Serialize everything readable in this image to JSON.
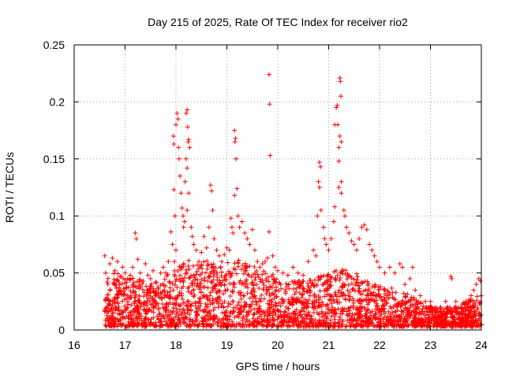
{
  "chart_data": {
    "type": "scatter",
    "title": "Day 215 of 2025, Rate Of TEC Index for receiver rio2",
    "xlabel": "GPS time / hours",
    "ylabel": "ROTI / TECUs",
    "xlim": [
      16,
      24
    ],
    "ylim": [
      0,
      0.25
    ],
    "x_ticks": [
      16,
      17,
      18,
      19,
      20,
      21,
      22,
      23,
      24
    ],
    "x_tick_labels": [
      "16",
      "17",
      "18",
      "19",
      "20",
      "21",
      "22",
      "23",
      "24"
    ],
    "y_ticks": [
      0,
      0.05,
      0.1,
      0.15,
      0.2,
      0.25
    ],
    "y_tick_labels": [
      "0",
      "0.05",
      "0.1",
      "0.15",
      "0.2",
      "0.25"
    ],
    "grid": true,
    "marker": "plus",
    "color": "#ff0000",
    "series": [
      {
        "name": "ROTI",
        "points": [
          [
            16.6,
            0.065
          ],
          [
            16.62,
            0.05
          ],
          [
            16.65,
            0.042
          ],
          [
            16.7,
            0.058
          ],
          [
            16.75,
            0.063
          ],
          [
            16.8,
            0.052
          ],
          [
            16.85,
            0.06
          ],
          [
            16.9,
            0.047
          ],
          [
            16.95,
            0.055
          ],
          [
            17.0,
            0.05
          ],
          [
            17.05,
            0.045
          ],
          [
            17.1,
            0.048
          ],
          [
            17.15,
            0.055
          ],
          [
            17.2,
            0.085
          ],
          [
            17.22,
            0.08
          ],
          [
            17.25,
            0.062
          ],
          [
            17.3,
            0.05
          ],
          [
            17.4,
            0.058
          ],
          [
            17.45,
            0.048
          ],
          [
            17.5,
            0.045
          ],
          [
            17.55,
            0.052
          ],
          [
            17.6,
            0.042
          ],
          [
            17.7,
            0.05
          ],
          [
            17.75,
            0.055
          ],
          [
            17.8,
            0.05
          ],
          [
            17.85,
            0.06
          ],
          [
            17.9,
            0.086
          ],
          [
            17.93,
            0.075
          ],
          [
            17.97,
            0.06
          ],
          [
            18.0,
            0.07
          ],
          [
            17.98,
            0.1
          ],
          [
            17.96,
            0.123
          ],
          [
            17.95,
            0.17
          ],
          [
            17.96,
            0.163
          ],
          [
            18.0,
            0.18
          ],
          [
            18.02,
            0.19
          ],
          [
            18.04,
            0.185
          ],
          [
            18.05,
            0.16
          ],
          [
            18.06,
            0.15
          ],
          [
            18.08,
            0.135
          ],
          [
            18.1,
            0.12
          ],
          [
            18.12,
            0.107
          ],
          [
            18.14,
            0.1
          ],
          [
            18.15,
            0.09
          ],
          [
            18.17,
            0.095
          ],
          [
            18.2,
            0.19
          ],
          [
            18.22,
            0.193
          ],
          [
            18.23,
            0.178
          ],
          [
            18.24,
            0.165
          ],
          [
            18.25,
            0.167
          ],
          [
            18.27,
            0.16
          ],
          [
            18.2,
            0.15
          ],
          [
            18.22,
            0.142
          ],
          [
            18.18,
            0.13
          ],
          [
            18.25,
            0.12
          ],
          [
            18.22,
            0.105
          ],
          [
            18.3,
            0.09
          ],
          [
            18.32,
            0.082
          ],
          [
            18.35,
            0.075
          ],
          [
            18.4,
            0.07
          ],
          [
            18.45,
            0.06
          ],
          [
            18.5,
            0.068
          ],
          [
            18.55,
            0.082
          ],
          [
            18.6,
            0.072
          ],
          [
            18.65,
            0.09
          ],
          [
            18.68,
            0.127
          ],
          [
            18.7,
            0.122
          ],
          [
            18.72,
            0.105
          ],
          [
            18.75,
            0.08
          ],
          [
            18.8,
            0.07
          ],
          [
            18.85,
            0.065
          ],
          [
            18.9,
            0.06
          ],
          [
            18.95,
            0.066
          ],
          [
            19.0,
            0.072
          ],
          [
            19.05,
            0.07
          ],
          [
            19.08,
            0.098
          ],
          [
            19.1,
            0.09
          ],
          [
            19.12,
            0.085
          ],
          [
            19.15,
            0.175
          ],
          [
            19.17,
            0.168
          ],
          [
            19.16,
            0.165
          ],
          [
            19.18,
            0.15
          ],
          [
            19.2,
            0.124
          ],
          [
            19.15,
            0.118
          ],
          [
            19.22,
            0.1
          ],
          [
            19.25,
            0.09
          ],
          [
            19.3,
            0.095
          ],
          [
            19.35,
            0.085
          ],
          [
            19.4,
            0.08
          ],
          [
            19.45,
            0.075
          ],
          [
            19.5,
            0.088
          ],
          [
            19.55,
            0.07
          ],
          [
            19.6,
            0.06
          ],
          [
            19.65,
            0.055
          ],
          [
            19.7,
            0.058
          ],
          [
            19.75,
            0.06
          ],
          [
            19.8,
            0.063
          ],
          [
            19.83,
            0.224
          ],
          [
            19.84,
            0.198
          ],
          [
            19.85,
            0.153
          ],
          [
            19.83,
            0.086
          ],
          [
            19.9,
            0.065
          ],
          [
            19.95,
            0.055
          ],
          [
            20.0,
            0.052
          ],
          [
            20.1,
            0.05
          ],
          [
            20.2,
            0.048
          ],
          [
            20.3,
            0.055
          ],
          [
            20.4,
            0.05
          ],
          [
            20.5,
            0.048
          ],
          [
            20.6,
            0.06
          ],
          [
            20.7,
            0.07
          ],
          [
            20.75,
            0.065
          ],
          [
            20.78,
            0.1
          ],
          [
            20.8,
            0.13
          ],
          [
            20.82,
            0.147
          ],
          [
            20.84,
            0.143
          ],
          [
            20.82,
            0.125
          ],
          [
            20.85,
            0.105
          ],
          [
            20.9,
            0.09
          ],
          [
            20.92,
            0.08
          ],
          [
            20.95,
            0.075
          ],
          [
            21.0,
            0.07
          ],
          [
            21.05,
            0.08
          ],
          [
            21.1,
            0.095
          ],
          [
            21.12,
            0.108
          ],
          [
            21.12,
            0.18
          ],
          [
            21.15,
            0.195
          ],
          [
            21.17,
            0.197
          ],
          [
            21.18,
            0.18
          ],
          [
            21.2,
            0.16
          ],
          [
            21.22,
            0.221
          ],
          [
            21.23,
            0.218
          ],
          [
            21.24,
            0.205
          ],
          [
            21.22,
            0.17
          ],
          [
            21.25,
            0.165
          ],
          [
            21.2,
            0.148
          ],
          [
            21.25,
            0.13
          ],
          [
            21.2,
            0.125
          ],
          [
            21.25,
            0.12
          ],
          [
            21.3,
            0.105
          ],
          [
            21.32,
            0.1
          ],
          [
            21.35,
            0.09
          ],
          [
            21.4,
            0.085
          ],
          [
            21.45,
            0.078
          ],
          [
            21.5,
            0.075
          ],
          [
            21.55,
            0.07
          ],
          [
            21.6,
            0.08
          ],
          [
            21.65,
            0.09
          ],
          [
            21.7,
            0.092
          ],
          [
            21.75,
            0.088
          ],
          [
            21.8,
            0.075
          ],
          [
            21.85,
            0.07
          ],
          [
            21.9,
            0.065
          ],
          [
            21.95,
            0.06
          ],
          [
            22.0,
            0.055
          ],
          [
            22.1,
            0.05
          ],
          [
            22.2,
            0.055
          ],
          [
            22.3,
            0.05
          ],
          [
            22.4,
            0.058
          ],
          [
            22.45,
            0.055
          ],
          [
            22.5,
            0.04
          ],
          [
            22.6,
            0.045
          ],
          [
            22.65,
            0.055
          ],
          [
            22.7,
            0.035
          ],
          [
            22.8,
            0.03
          ],
          [
            22.9,
            0.025
          ],
          [
            23.0,
            0.025
          ],
          [
            23.1,
            0.02
          ],
          [
            23.2,
            0.02
          ],
          [
            23.3,
            0.025
          ],
          [
            23.4,
            0.047
          ],
          [
            23.42,
            0.045
          ],
          [
            23.5,
            0.025
          ],
          [
            23.6,
            0.02
          ],
          [
            23.7,
            0.025
          ],
          [
            23.8,
            0.03
          ],
          [
            23.85,
            0.035
          ],
          [
            23.9,
            0.04
          ],
          [
            23.95,
            0.045
          ],
          [
            23.98,
            0.043
          ]
        ]
      }
    ],
    "dense_band": [
      {
        "x": 16.6,
        "ymax": 0.045
      },
      {
        "x": 16.8,
        "ymax": 0.048
      },
      {
        "x": 17.0,
        "ymax": 0.042
      },
      {
        "x": 17.2,
        "ymax": 0.045
      },
      {
        "x": 17.4,
        "ymax": 0.04
      },
      {
        "x": 17.6,
        "ymax": 0.038
      },
      {
        "x": 17.8,
        "ymax": 0.045
      },
      {
        "x": 18.0,
        "ymax": 0.05
      },
      {
        "x": 18.2,
        "ymax": 0.06
      },
      {
        "x": 18.4,
        "ymax": 0.055
      },
      {
        "x": 18.6,
        "ymax": 0.058
      },
      {
        "x": 18.8,
        "ymax": 0.055
      },
      {
        "x": 19.0,
        "ymax": 0.058
      },
      {
        "x": 19.2,
        "ymax": 0.06
      },
      {
        "x": 19.4,
        "ymax": 0.058
      },
      {
        "x": 19.6,
        "ymax": 0.05
      },
      {
        "x": 19.8,
        "ymax": 0.05
      },
      {
        "x": 20.0,
        "ymax": 0.042
      },
      {
        "x": 20.2,
        "ymax": 0.04
      },
      {
        "x": 20.4,
        "ymax": 0.04
      },
      {
        "x": 20.6,
        "ymax": 0.04
      },
      {
        "x": 20.8,
        "ymax": 0.045
      },
      {
        "x": 21.0,
        "ymax": 0.048
      },
      {
        "x": 21.2,
        "ymax": 0.05
      },
      {
        "x": 21.4,
        "ymax": 0.05
      },
      {
        "x": 21.6,
        "ymax": 0.045
      },
      {
        "x": 21.8,
        "ymax": 0.04
      },
      {
        "x": 22.0,
        "ymax": 0.035
      },
      {
        "x": 22.2,
        "ymax": 0.035
      },
      {
        "x": 22.4,
        "ymax": 0.03
      },
      {
        "x": 22.6,
        "ymax": 0.028
      },
      {
        "x": 22.8,
        "ymax": 0.022
      },
      {
        "x": 23.0,
        "ymax": 0.018
      },
      {
        "x": 23.2,
        "ymax": 0.016
      },
      {
        "x": 23.4,
        "ymax": 0.018
      },
      {
        "x": 23.6,
        "ymax": 0.02
      },
      {
        "x": 23.8,
        "ymax": 0.025
      },
      {
        "x": 24.0,
        "ymax": 0.03
      }
    ]
  }
}
